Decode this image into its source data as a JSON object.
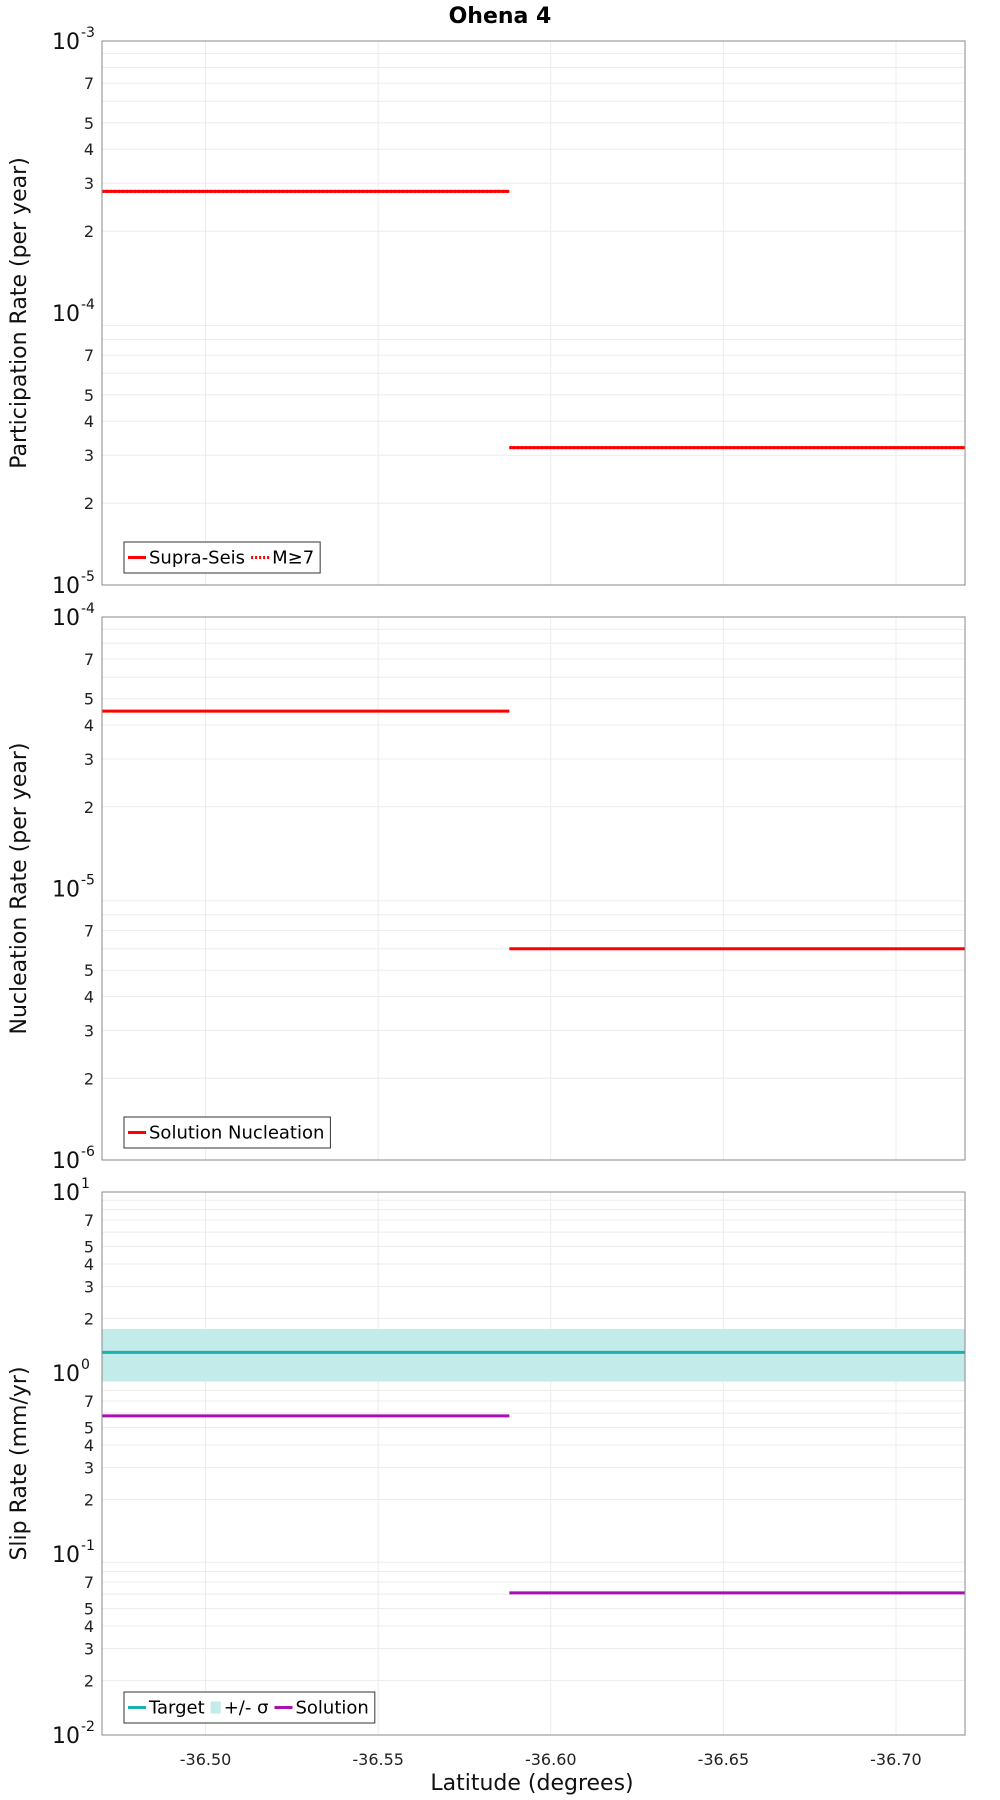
{
  "chart_data": {
    "type": "line",
    "title": "Ohena 4",
    "xlabel": "Latitude (degrees)",
    "xlim": [
      -36.47,
      -36.72
    ],
    "x_ticks": [
      "-36.50",
      "-36.55",
      "-36.60",
      "-36.65",
      "-36.70"
    ],
    "x_tick_values": [
      -36.5,
      -36.55,
      -36.6,
      -36.65,
      -36.7
    ],
    "panels": [
      {
        "ylabel": "Participation Rate (per year)",
        "ylim_log10": [
          -5,
          -3
        ],
        "series": [
          {
            "name": "Supra-Seis",
            "color": "#ff0000",
            "dash": "solid",
            "width": 3,
            "segments": [
              {
                "x": [
                  -36.47,
                  -36.588
                ],
                "y": 0.00028
              },
              {
                "x": [
                  -36.588,
                  -36.72
                ],
                "y": 3.2e-05
              }
            ]
          },
          {
            "name": "M≥7",
            "color": "#ff0000",
            "dash": "dotted",
            "width": 3,
            "segments": [
              {
                "x": [
                  -36.47,
                  -36.588
                ],
                "y": 0.00028
              },
              {
                "x": [
                  -36.588,
                  -36.72
                ],
                "y": 3.2e-05
              }
            ]
          }
        ],
        "legend": [
          {
            "label": "Supra-Seis",
            "kind": "line",
            "color": "#ff0000",
            "dash": "solid"
          },
          {
            "label": "M≥7",
            "kind": "line",
            "color": "#ff0000",
            "dash": "dotted"
          }
        ]
      },
      {
        "ylabel": "Nucleation Rate (per year)",
        "ylim_log10": [
          -6,
          -4
        ],
        "series": [
          {
            "name": "Solution Nucleation",
            "color": "#ff0000",
            "dash": "solid",
            "width": 3,
            "segments": [
              {
                "x": [
                  -36.47,
                  -36.588
                ],
                "y": 4.5e-05
              },
              {
                "x": [
                  -36.588,
                  -36.72
                ],
                "y": 6e-06
              }
            ]
          }
        ],
        "legend": [
          {
            "label": "Solution Nucleation",
            "kind": "line",
            "color": "#ff0000",
            "dash": "solid"
          }
        ]
      },
      {
        "ylabel": "Slip Rate (mm/yr)",
        "ylim_log10": [
          -2,
          1
        ],
        "band": {
          "name": "+/- σ",
          "color": "#c2ebe9",
          "low": 0.9,
          "high": 1.75
        },
        "series": [
          {
            "name": "Target",
            "color": "#1aafb0",
            "dash": "solid",
            "width": 3,
            "segments": [
              {
                "x": [
                  -36.47,
                  -36.72
                ],
                "y": 1.3
              }
            ]
          },
          {
            "name": "Solution",
            "color": "#a710b3",
            "dash": "solid",
            "width": 3,
            "segments": [
              {
                "x": [
                  -36.47,
                  -36.588
                ],
                "y": 0.58
              },
              {
                "x": [
                  -36.588,
                  -36.72
                ],
                "y": 0.061
              }
            ]
          }
        ],
        "legend": [
          {
            "label": "Target",
            "kind": "line",
            "color": "#1aafb0",
            "dash": "solid"
          },
          {
            "label": "+/- σ",
            "kind": "patch",
            "color": "#c2ebe9",
            "dash": "solid"
          },
          {
            "label": "Solution",
            "kind": "line",
            "color": "#a710b3",
            "dash": "solid"
          }
        ]
      }
    ],
    "minor_tick_labels": [
      "2",
      "3",
      "4",
      "5",
      "7"
    ]
  }
}
